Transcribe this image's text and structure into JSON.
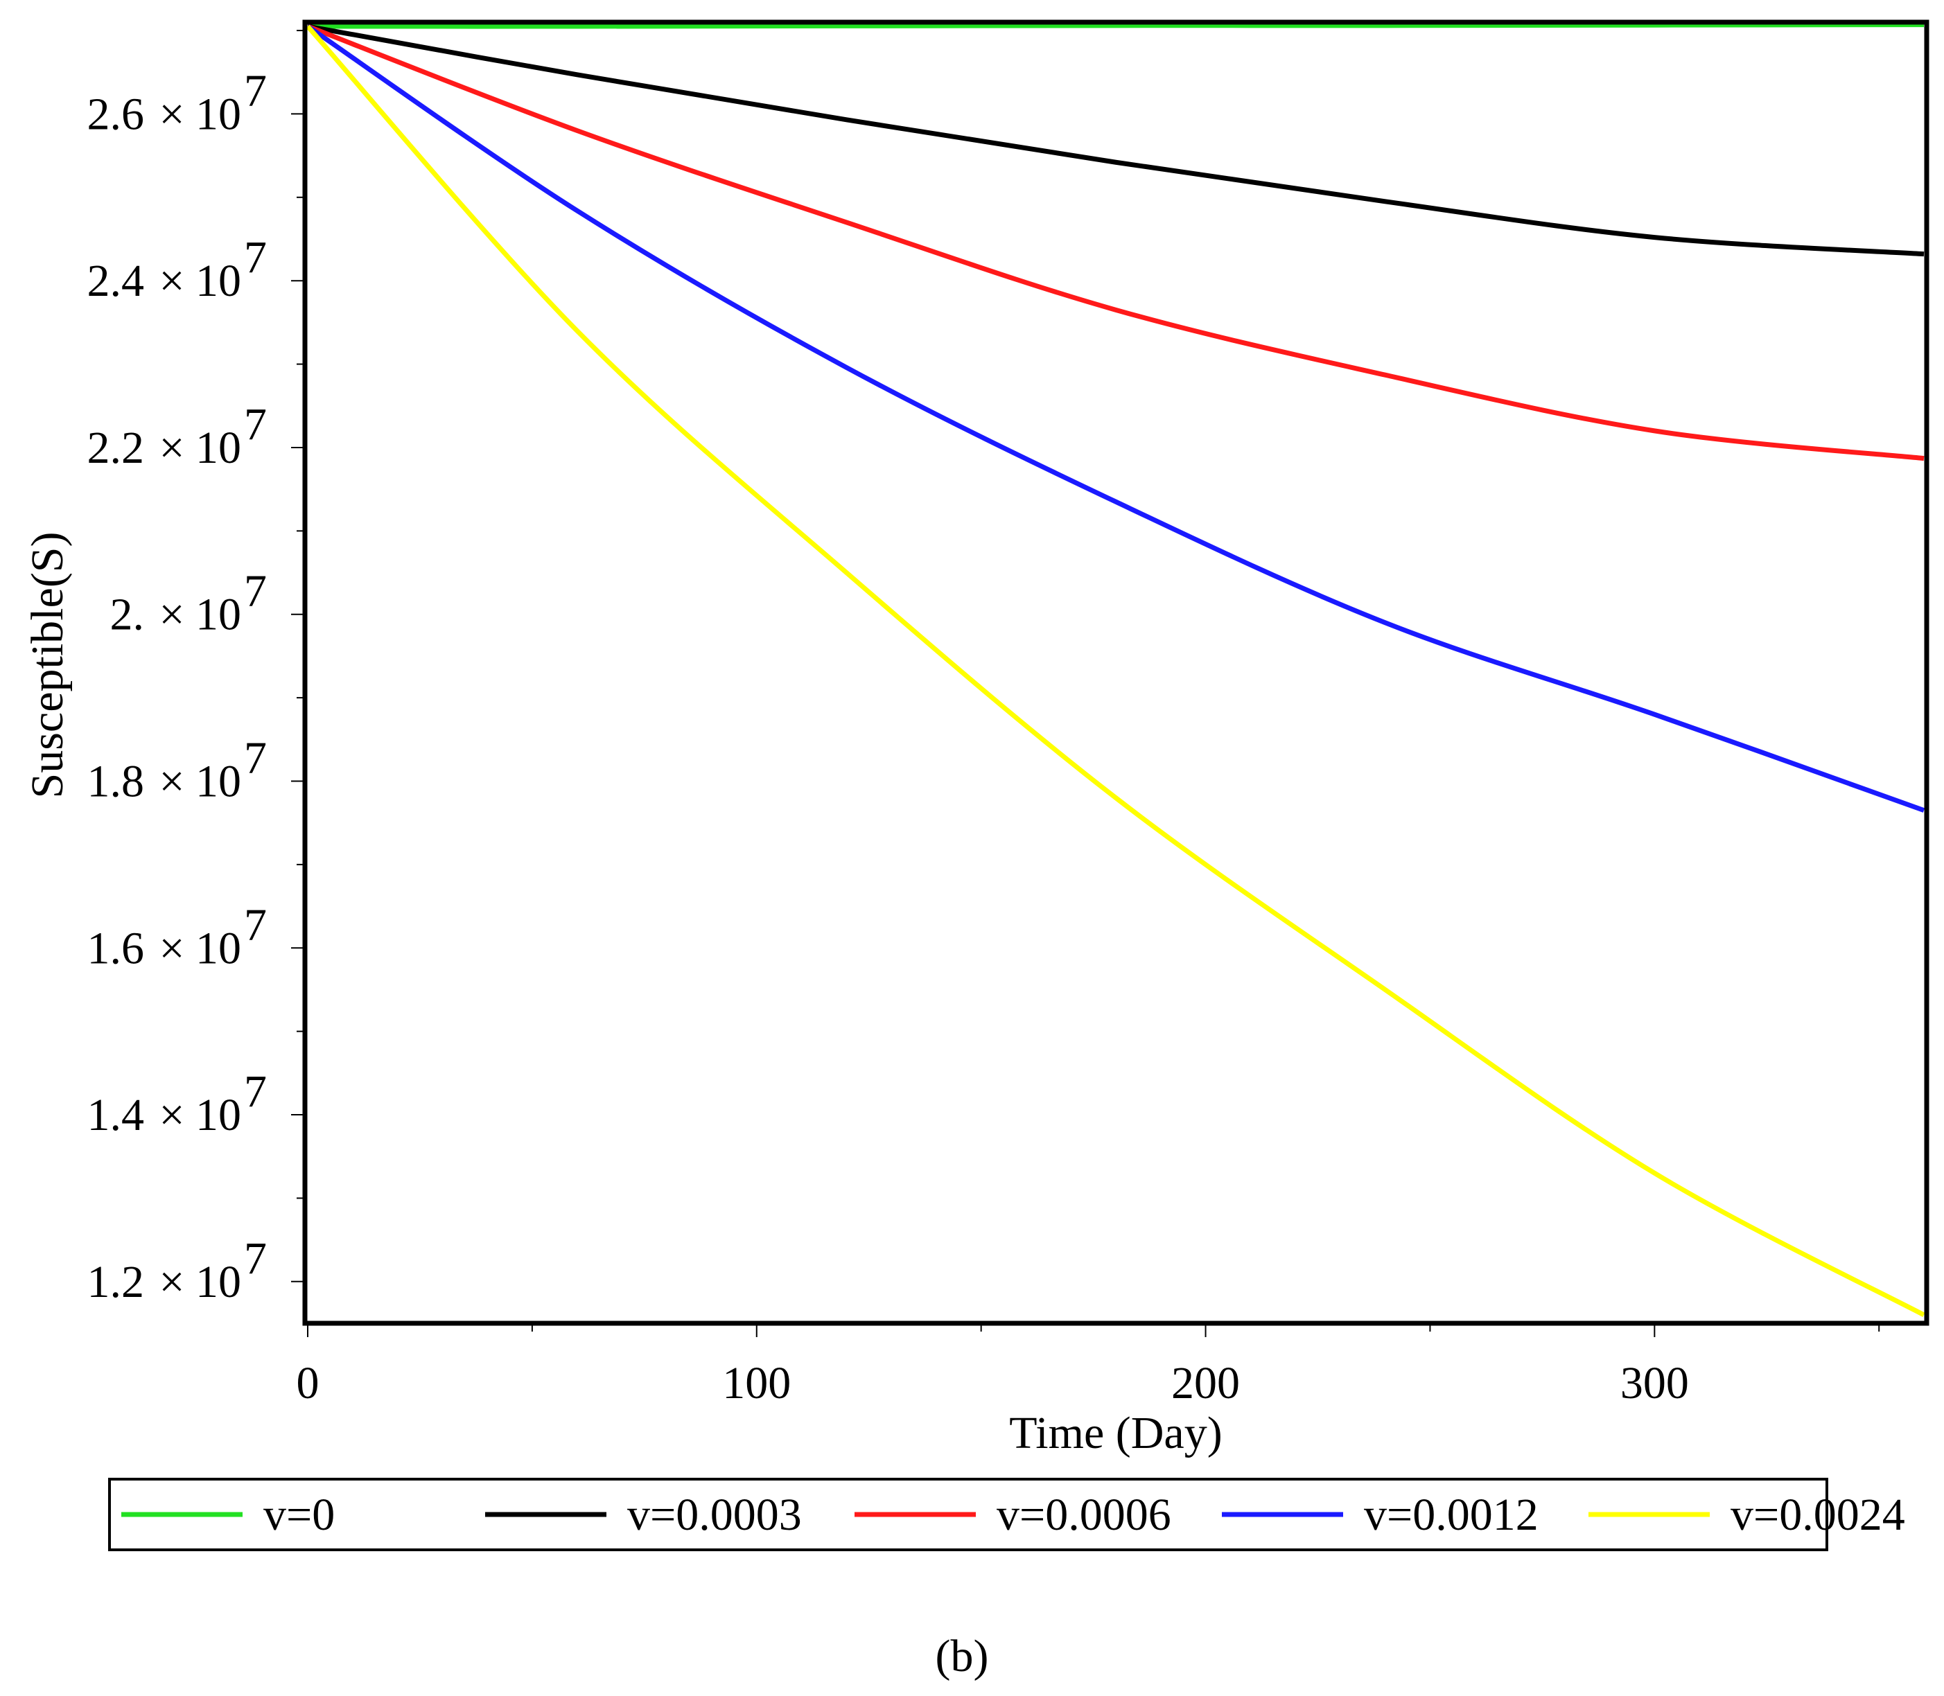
{
  "chart_data": {
    "type": "line",
    "xlabel": "Time (Day)",
    "ylabel": "Susceptible(S)",
    "xlim": [
      0,
      360
    ],
    "ylim": [
      11500000,
      27100000
    ],
    "x_ticks": [
      {
        "value": 0,
        "label": "0"
      },
      {
        "value": 100,
        "label": "100"
      },
      {
        "value": 200,
        "label": "200"
      },
      {
        "value": 300,
        "label": "300"
      }
    ],
    "y_ticks": [
      {
        "value": 12000000,
        "mantissa": "1.2",
        "times": "×",
        "base": "10",
        "exp": "7"
      },
      {
        "value": 14000000,
        "mantissa": "1.4",
        "times": "×",
        "base": "10",
        "exp": "7"
      },
      {
        "value": 16000000,
        "mantissa": "1.6",
        "times": "×",
        "base": "10",
        "exp": "7"
      },
      {
        "value": 18000000,
        "mantissa": "1.8",
        "times": "×",
        "base": "10",
        "exp": "7"
      },
      {
        "value": 20000000,
        "mantissa": "2.",
        "times": "×",
        "base": "10",
        "exp": "7"
      },
      {
        "value": 22000000,
        "mantissa": "2.2",
        "times": "×",
        "base": "10",
        "exp": "7"
      },
      {
        "value": 24000000,
        "mantissa": "2.4",
        "times": "×",
        "base": "10",
        "exp": "7"
      },
      {
        "value": 26000000,
        "mantissa": "2.6",
        "times": "×",
        "base": "10",
        "exp": "7"
      }
    ],
    "x": [
      0,
      60,
      120,
      180,
      240,
      300,
      360
    ],
    "series": [
      {
        "name": "v=0",
        "color": "#22e022",
        "values": [
          27050000,
          27050000,
          27055000,
          27060000,
          27060000,
          27065000,
          27070000
        ]
      },
      {
        "name": "v=0.0003",
        "color": "#000000",
        "values": [
          27050000,
          26470000,
          25930000,
          25420000,
          24950000,
          24520000,
          24320000
        ]
      },
      {
        "name": "v=0.0006",
        "color": "#ff1a1a",
        "values": [
          27050000,
          25800000,
          24700000,
          23650000,
          22870000,
          22200000,
          21870000
        ]
      },
      {
        "name": "v=0.0012",
        "color": "#1a1aff",
        "values": [
          27050000,
          24840000,
          22960000,
          21350000,
          19900000,
          18800000,
          17650000
        ]
      },
      {
        "name": "v=0.0024",
        "color": "#ffff00",
        "values": [
          27050000,
          23400000,
          20500000,
          17800000,
          15500000,
          13300000,
          11600000
        ]
      }
    ],
    "caption": "(b)"
  }
}
